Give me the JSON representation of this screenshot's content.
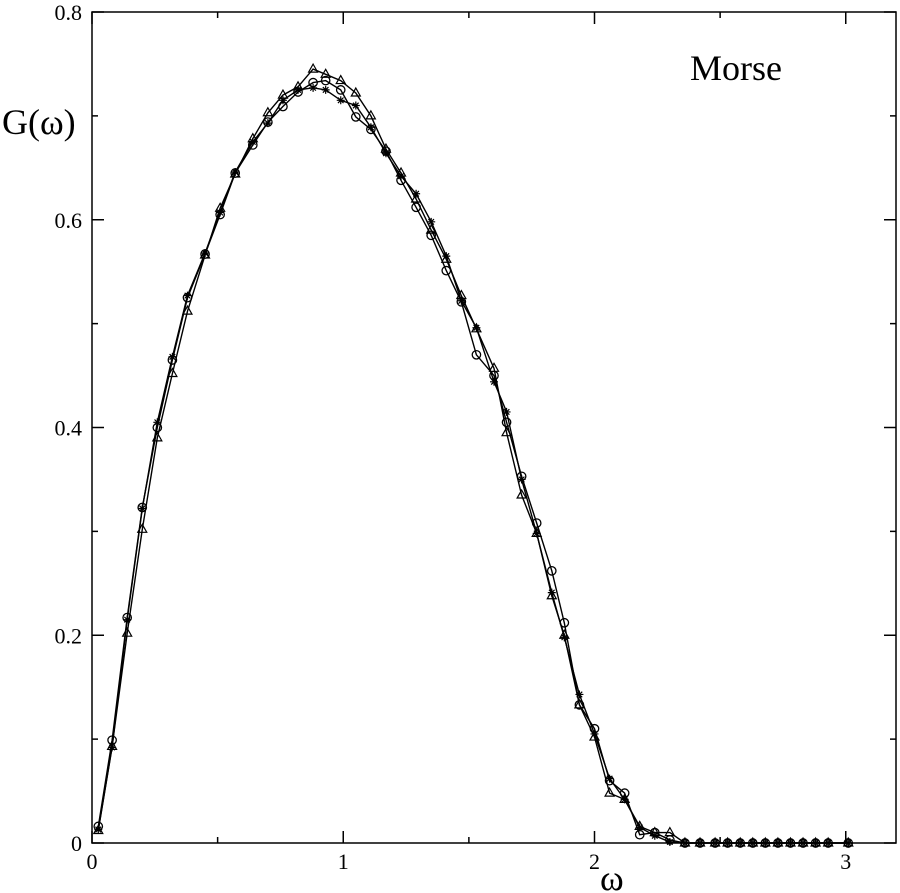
{
  "chart_data": {
    "type": "line",
    "title": "",
    "annotation": "Morse",
    "xlabel": "ω",
    "ylabel": "G(ω)",
    "xlim": [
      0,
      3.2
    ],
    "ylim": [
      0,
      0.8
    ],
    "x_ticks": [
      0,
      1,
      2,
      3
    ],
    "x_tick_labels": [
      "0",
      "1",
      "2",
      "3"
    ],
    "y_ticks": [
      0,
      0.2,
      0.4,
      0.6,
      0.8
    ],
    "y_tick_labels": [
      "0",
      "0.2",
      "0.4",
      "0.6",
      "0.8"
    ],
    "grid": false,
    "series": [
      {
        "marker": "circle",
        "x": [
          0.025,
          0.08,
          0.14,
          0.2,
          0.26,
          0.32,
          0.38,
          0.45,
          0.51,
          0.57,
          0.64,
          0.7,
          0.76,
          0.82,
          0.88,
          0.93,
          0.99,
          1.05,
          1.11,
          1.17,
          1.23,
          1.29,
          1.35,
          1.41,
          1.47,
          1.53,
          1.6,
          1.65,
          1.71,
          1.77,
          1.83,
          1.88,
          1.94,
          2.0,
          2.06,
          2.12,
          2.18,
          2.24,
          2.3,
          2.36,
          2.42,
          2.48,
          2.53,
          2.58,
          2.63,
          2.68,
          2.73,
          2.78,
          2.83,
          2.88,
          2.93,
          3.01
        ],
        "values": [
          0.016,
          0.099,
          0.217,
          0.323,
          0.4,
          0.465,
          0.525,
          0.567,
          0.605,
          0.645,
          0.672,
          0.694,
          0.709,
          0.723,
          0.732,
          0.734,
          0.725,
          0.699,
          0.687,
          0.666,
          0.638,
          0.612,
          0.585,
          0.551,
          0.521,
          0.47,
          0.45,
          0.405,
          0.353,
          0.308,
          0.262,
          0.212,
          0.133,
          0.11,
          0.06,
          0.048,
          0.008,
          0.01,
          0.003,
          0.0,
          0.0,
          0.0,
          0.0,
          0.0,
          0.0,
          0.0,
          0.0,
          0.0,
          0.0,
          0.0,
          0.0,
          0.0
        ]
      },
      {
        "marker": "star",
        "x": [
          0.025,
          0.08,
          0.14,
          0.2,
          0.26,
          0.32,
          0.38,
          0.45,
          0.51,
          0.57,
          0.64,
          0.7,
          0.76,
          0.82,
          0.88,
          0.93,
          0.99,
          1.05,
          1.11,
          1.17,
          1.23,
          1.29,
          1.35,
          1.41,
          1.47,
          1.53,
          1.6,
          1.65,
          1.71,
          1.77,
          1.83,
          1.88,
          1.94,
          2.0,
          2.06,
          2.12,
          2.18,
          2.24,
          2.3,
          2.36,
          2.42,
          2.48,
          2.53,
          2.58,
          2.63,
          2.68,
          2.73,
          2.78,
          2.83,
          2.88,
          2.93,
          3.01
        ],
        "values": [
          0.013,
          0.092,
          0.215,
          0.322,
          0.405,
          0.468,
          0.527,
          0.568,
          0.607,
          0.646,
          0.675,
          0.693,
          0.715,
          0.725,
          0.727,
          0.725,
          0.715,
          0.71,
          0.689,
          0.664,
          0.642,
          0.625,
          0.598,
          0.565,
          0.522,
          0.496,
          0.444,
          0.415,
          0.35,
          0.298,
          0.241,
          0.198,
          0.143,
          0.105,
          0.062,
          0.042,
          0.015,
          0.007,
          0.001,
          0.0,
          0.0,
          0.0,
          0.0,
          0.0,
          0.0,
          0.0,
          0.0,
          0.0,
          0.0,
          0.0,
          0.0,
          0.0
        ]
      },
      {
        "marker": "triangle",
        "x": [
          0.025,
          0.08,
          0.14,
          0.2,
          0.26,
          0.32,
          0.38,
          0.45,
          0.51,
          0.57,
          0.64,
          0.7,
          0.76,
          0.82,
          0.88,
          0.93,
          0.99,
          1.05,
          1.11,
          1.17,
          1.23,
          1.29,
          1.35,
          1.41,
          1.47,
          1.53,
          1.6,
          1.65,
          1.71,
          1.77,
          1.83,
          1.88,
          1.94,
          2.0,
          2.06,
          2.12,
          2.18,
          2.24,
          2.3,
          2.36,
          2.42,
          2.48,
          2.53,
          2.58,
          2.63,
          2.68,
          2.73,
          2.78,
          2.83,
          2.88,
          2.93,
          3.01
        ],
        "values": [
          0.012,
          0.093,
          0.202,
          0.302,
          0.39,
          0.452,
          0.512,
          0.566,
          0.611,
          0.644,
          0.678,
          0.703,
          0.72,
          0.728,
          0.745,
          0.74,
          0.734,
          0.722,
          0.7,
          0.668,
          0.645,
          0.62,
          0.59,
          0.562,
          0.527,
          0.495,
          0.457,
          0.395,
          0.335,
          0.298,
          0.238,
          0.2,
          0.133,
          0.102,
          0.048,
          0.042,
          0.016,
          0.01,
          0.01,
          0.0,
          0.0,
          0.0,
          0.0,
          0.0,
          0.0,
          0.0,
          0.0,
          0.0,
          0.0,
          0.0,
          0.0,
          0.0
        ]
      }
    ]
  }
}
